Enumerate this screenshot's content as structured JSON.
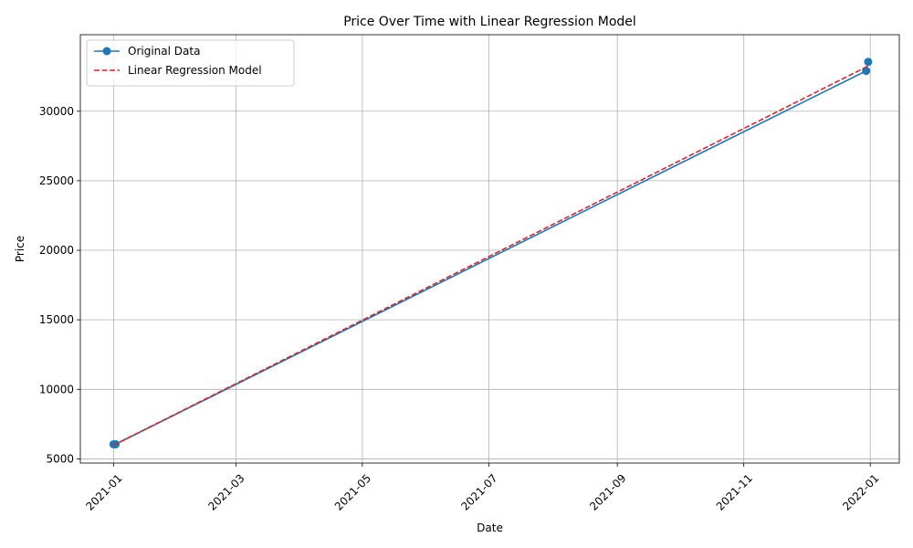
{
  "chart_data": {
    "type": "line",
    "title": "Price Over Time with Linear Regression Model",
    "xlabel": "Date",
    "ylabel": "Price",
    "x_axis_type": "date",
    "xlim": [
      "2020-12-16",
      "2022-01-15"
    ],
    "ylim": [
      4700,
      35500
    ],
    "grid": true,
    "legend_position": "top-left",
    "x_ticks": [
      "2021-01-01",
      "2021-03-01",
      "2021-05-01",
      "2021-07-01",
      "2021-09-01",
      "2021-11-01",
      "2022-01-01"
    ],
    "x_tick_labels": [
      "2021-01",
      "2021-03",
      "2021-05",
      "2021-07",
      "2021-09",
      "2021-11",
      "2022-01"
    ],
    "x_tick_rotation": 45,
    "y_ticks": [
      5000,
      10000,
      15000,
      20000,
      25000,
      30000
    ],
    "y_tick_labels": [
      "5000",
      "10000",
      "15000",
      "20000",
      "25000",
      "30000"
    ],
    "series": [
      {
        "name": "Original Data",
        "style": "solid-with-markers",
        "color": "#1f77b4",
        "x": [
          "2021-01-01",
          "2021-01-02",
          "2021-12-30",
          "2021-12-31"
        ],
        "y": [
          6050,
          6050,
          32900,
          33550
        ]
      },
      {
        "name": "Linear Regression Model",
        "style": "dashed",
        "color": "#d62728",
        "x": [
          "2021-01-01",
          "2021-12-31"
        ],
        "y": [
          5980,
          33250
        ]
      }
    ]
  }
}
